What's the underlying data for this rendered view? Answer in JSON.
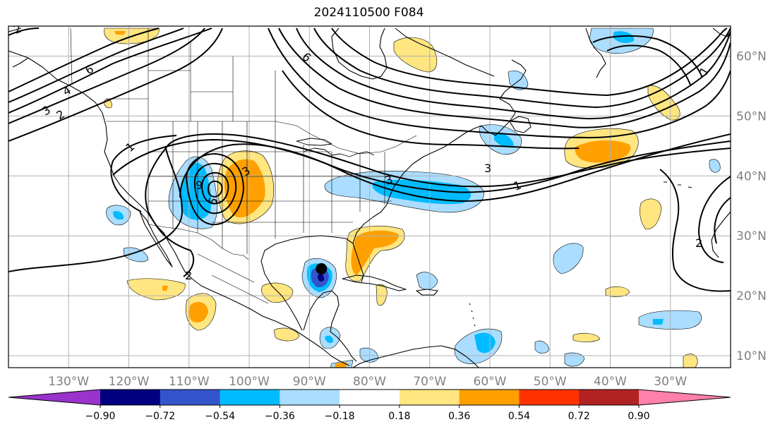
{
  "title": "2024110500 F084",
  "map": {
    "lon_range": [
      -140,
      -20
    ],
    "lat_range": [
      8,
      65
    ],
    "lat_ticks": [
      {
        "value": 10,
        "label": "10°N"
      },
      {
        "value": 20,
        "label": "20°N"
      },
      {
        "value": 30,
        "label": "30°N"
      },
      {
        "value": 40,
        "label": "40°N"
      },
      {
        "value": 50,
        "label": "50°N"
      },
      {
        "value": 60,
        "label": "60°N"
      }
    ],
    "lon_ticks": [
      {
        "value": -130,
        "label": "130°W"
      },
      {
        "value": -120,
        "label": "120°W"
      },
      {
        "value": -110,
        "label": "110°W"
      },
      {
        "value": -100,
        "label": "100°W"
      },
      {
        "value": -90,
        "label": "90°W"
      },
      {
        "value": -80,
        "label": "80°W"
      },
      {
        "value": -70,
        "label": "70°W"
      },
      {
        "value": -60,
        "label": "60°W"
      },
      {
        "value": -50,
        "label": "50°W"
      },
      {
        "value": -40,
        "label": "40°W"
      },
      {
        "value": -30,
        "label": "30°W"
      }
    ],
    "contour_labels": [
      "6",
      "6",
      "4",
      "3",
      "2",
      "1",
      "9",
      "3",
      "3",
      "1",
      "2",
      "6",
      "1",
      "2",
      "3",
      "2"
    ],
    "marker": {
      "lon": -88,
      "lat": 24.5
    }
  },
  "colorbar": {
    "colors": [
      "#9933cc",
      "#000080",
      "#3355cc",
      "#00bbff",
      "#aaddff",
      "#ffffff",
      "#ffe680",
      "#ffa000",
      "#ff3300",
      "#b22222",
      "#ff80aa"
    ],
    "labels": [
      "−0.90",
      "−0.72",
      "−0.54",
      "−0.36",
      "−0.18",
      "0.18",
      "0.36",
      "0.54",
      "0.72",
      "0.90"
    ]
  },
  "colors": {
    "frame": "#000000",
    "grid": "#b0b0b0",
    "tick_label": "#808080"
  }
}
